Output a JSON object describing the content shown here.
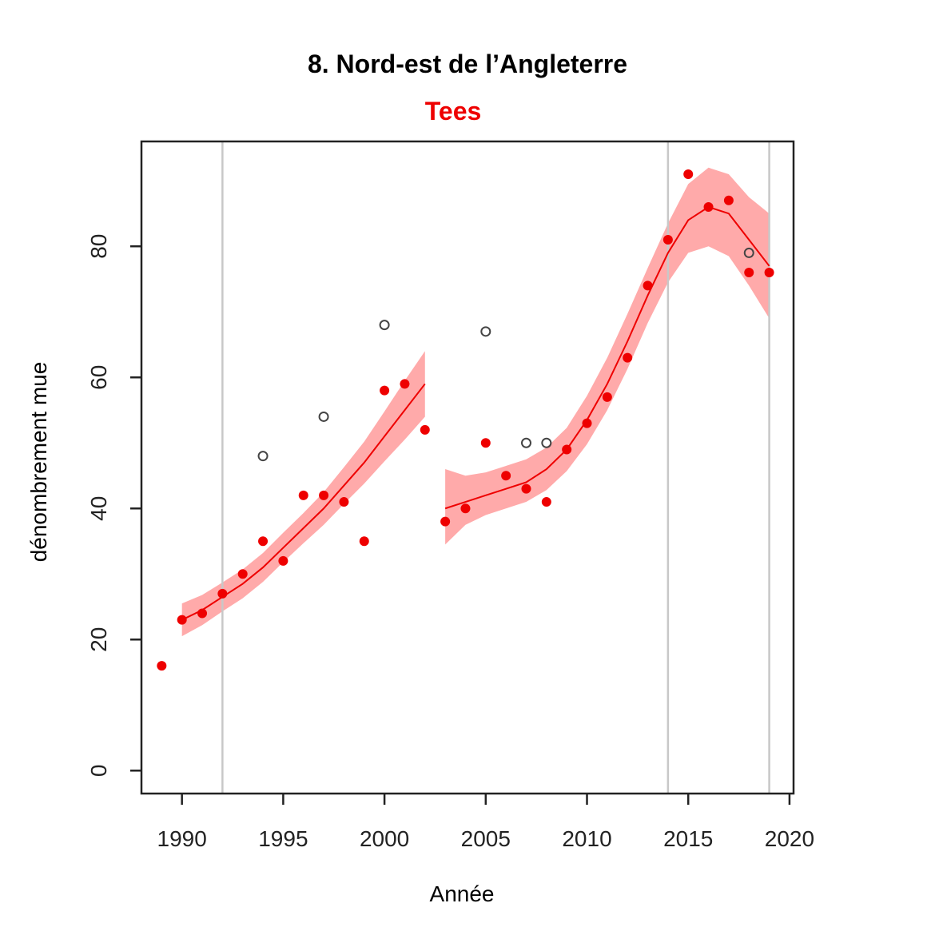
{
  "chart_data": {
    "type": "scatter",
    "title": "8. Nord-est de l’Angleterre",
    "subtitle": "Tees",
    "xlabel": "Année",
    "ylabel": "dénombrement mue",
    "xlim": [
      1988,
      2020.2
    ],
    "ylim": [
      -3.5,
      96
    ],
    "xticks": [
      1990,
      1995,
      2000,
      2005,
      2010,
      2015,
      2020
    ],
    "yticks": [
      0,
      20,
      40,
      60,
      80
    ],
    "grid": false,
    "legend": "none",
    "colors": {
      "fit": "#ee0000",
      "band": "#ffaaaa",
      "points": "#ee0000",
      "excluded": "#444444",
      "breaks": "#c8c8c8",
      "frame": "#222222"
    },
    "breaks": [
      1992,
      2014,
      2019
    ],
    "series": [
      {
        "kind": "points",
        "values": [
          [
            1989,
            16
          ],
          [
            1990,
            23
          ],
          [
            1991,
            24
          ],
          [
            1992,
            27
          ],
          [
            1993,
            30
          ],
          [
            1994,
            35
          ],
          [
            1995,
            32
          ],
          [
            1996,
            42
          ],
          [
            1997,
            42
          ],
          [
            1998,
            41
          ],
          [
            1999,
            35
          ],
          [
            2000,
            58
          ],
          [
            2001,
            59
          ],
          [
            2002,
            52
          ],
          [
            2003,
            38
          ],
          [
            2004,
            40
          ],
          [
            2005,
            50
          ],
          [
            2006,
            45
          ],
          [
            2007,
            43
          ],
          [
            2008,
            41
          ],
          [
            2009,
            49
          ],
          [
            2010,
            53
          ],
          [
            2011,
            57
          ],
          [
            2012,
            63
          ],
          [
            2013,
            74
          ],
          [
            2014,
            81
          ],
          [
            2015,
            91
          ],
          [
            2016,
            86
          ],
          [
            2017,
            87
          ],
          [
            2018,
            76
          ],
          [
            2019,
            76
          ]
        ]
      },
      {
        "kind": "excluded-points",
        "values": [
          [
            1994,
            48
          ],
          [
            1997,
            54
          ],
          [
            2000,
            68
          ],
          [
            2005,
            67
          ],
          [
            2007,
            50
          ],
          [
            2008,
            50
          ],
          [
            2018,
            79
          ]
        ]
      },
      {
        "kind": "fit",
        "segments": [
          [
            [
              1990,
              23
            ],
            [
              1991,
              24.5
            ],
            [
              1992,
              26.5
            ],
            [
              1993,
              28.5
            ],
            [
              1994,
              31
            ],
            [
              1995,
              34
            ],
            [
              1996,
              37
            ],
            [
              1997,
              40
            ],
            [
              1998,
              43.5
            ],
            [
              1999,
              47
            ],
            [
              2000,
              51
            ],
            [
              2001,
              55
            ],
            [
              2002,
              59
            ]
          ],
          [
            [
              2003,
              40
            ],
            [
              2004,
              41
            ],
            [
              2005,
              42
            ],
            [
              2006,
              43
            ],
            [
              2007,
              44
            ],
            [
              2008,
              46
            ],
            [
              2009,
              49
            ],
            [
              2010,
              53.5
            ],
            [
              2011,
              59
            ],
            [
              2012,
              65.5
            ],
            [
              2013,
              72.5
            ],
            [
              2014,
              79
            ],
            [
              2015,
              84
            ],
            [
              2016,
              86
            ],
            [
              2017,
              85
            ],
            [
              2018,
              81
            ],
            [
              2019,
              77
            ]
          ]
        ]
      },
      {
        "kind": "band",
        "segments": [
          [
            [
              1990,
              20.5,
              25.5
            ],
            [
              1991,
              22.2,
              26.8
            ],
            [
              1992,
              24.3,
              28.7
            ],
            [
              1993,
              26.3,
              30.7
            ],
            [
              1994,
              28.8,
              33.2
            ],
            [
              1995,
              31.8,
              36.3
            ],
            [
              1996,
              34.7,
              39.3
            ],
            [
              1997,
              37.5,
              42.5
            ],
            [
              1998,
              40.7,
              46.3
            ],
            [
              1999,
              43.8,
              50.2
            ],
            [
              2000,
              47.2,
              54.8
            ],
            [
              2001,
              50.5,
              59.5
            ],
            [
              2002,
              54,
              64
            ]
          ],
          [
            [
              2003,
              34.5,
              46
            ],
            [
              2004,
              37.5,
              45
            ],
            [
              2005,
              39,
              45.5
            ],
            [
              2006,
              40,
              46.5
            ],
            [
              2007,
              41,
              47.5
            ],
            [
              2008,
              42.8,
              49.3
            ],
            [
              2009,
              45.7,
              52.3
            ],
            [
              2010,
              49.8,
              57.2
            ],
            [
              2011,
              55,
              63
            ],
            [
              2012,
              61.3,
              69.7
            ],
            [
              2013,
              68.3,
              76.7
            ],
            [
              2014,
              74.5,
              83.5
            ],
            [
              2015,
              79,
              89.5
            ],
            [
              2016,
              80,
              92
            ],
            [
              2017,
              78.5,
              91
            ],
            [
              2018,
              74,
              87.5
            ],
            [
              2019,
              69,
              85
            ]
          ]
        ]
      }
    ]
  }
}
